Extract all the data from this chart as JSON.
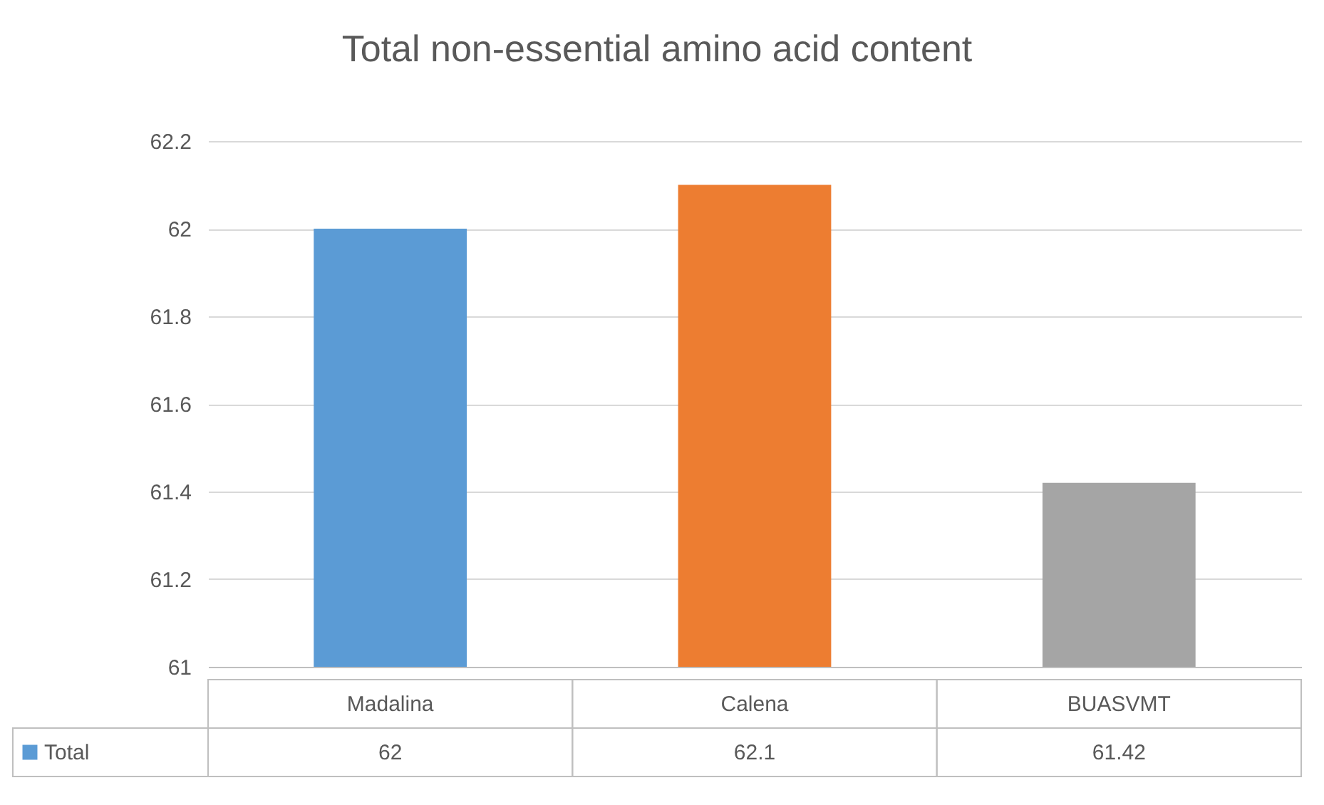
{
  "chart_data": {
    "type": "bar",
    "title": "Total non-essential amino acid content",
    "categories": [
      "Madalina",
      "Calena",
      "BUASVMT"
    ],
    "series": [
      {
        "name": "Total",
        "values": [
          62,
          62.1,
          61.42
        ]
      }
    ],
    "colors": [
      "#5b9bd5",
      "#ed7d31",
      "#a5a5a5"
    ],
    "ylim": [
      61,
      62.2
    ],
    "yticks": [
      61,
      61.2,
      61.4,
      61.6,
      61.8,
      62,
      62.2
    ],
    "grid": "y",
    "data_labels": true
  }
}
